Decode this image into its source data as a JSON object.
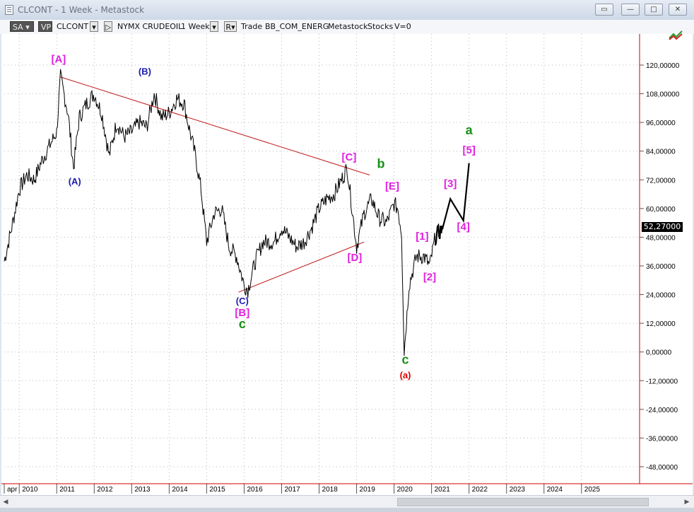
{
  "window": {
    "title": "CLCONT - 1 Week - Metastock",
    "buttons": [
      "restore-window",
      "minimize",
      "maximize",
      "close"
    ]
  },
  "toolbar": {
    "sa": "SA",
    "vp": "VP",
    "symbol": "CLCONT",
    "exchange": "NYMX CRUDEOIL",
    "period": "1 Week",
    "r_button": "R",
    "trade": "Trade",
    "source": "BB_COM_ENERG",
    "metastock": "Metastock",
    "stocks": "Stocks",
    "volume": "V=0"
  },
  "price_badge": "52,27000",
  "chart_data": {
    "type": "line",
    "title": "",
    "x": [
      "apr",
      "2010",
      "2011",
      "2012",
      "2013",
      "2014",
      "2015",
      "2016",
      "2017",
      "2018",
      "2019",
      "2020",
      "2021",
      "2022",
      "2023",
      "2024",
      "2025"
    ],
    "y_ticks": [
      "120,00000",
      "108,00000",
      "96,00000",
      "84,00000",
      "72,00000",
      "60,00000",
      "48,00000",
      "36,00000",
      "24,00000",
      "12,00000",
      "0,00000",
      "-12,00000",
      "-24,00000",
      "-36,00000",
      "-48,00000"
    ],
    "ylim": [
      -48,
      120
    ],
    "series": [
      {
        "values": [
          [
            2009.6,
            38
          ],
          [
            2009.8,
            52
          ],
          [
            2010.0,
            68
          ],
          [
            2010.2,
            74
          ],
          [
            2010.4,
            72
          ],
          [
            2010.6,
            80
          ],
          [
            2010.8,
            86
          ],
          [
            2011.0,
            92
          ],
          [
            2011.1,
            115
          ],
          [
            2011.3,
            100
          ],
          [
            2011.45,
            77
          ],
          [
            2011.6,
            98
          ],
          [
            2011.8,
            104
          ],
          [
            2012.0,
            108
          ],
          [
            2012.2,
            100
          ],
          [
            2012.4,
            82
          ],
          [
            2012.6,
            96
          ],
          [
            2012.8,
            90
          ],
          [
            2013.0,
            92
          ],
          [
            2013.2,
            96
          ],
          [
            2013.4,
            94
          ],
          [
            2013.6,
            108
          ],
          [
            2013.8,
            98
          ],
          [
            2014.0,
            100
          ],
          [
            2014.2,
            106
          ],
          [
            2014.4,
            104
          ],
          [
            2014.5,
            96
          ],
          [
            2014.7,
            82
          ],
          [
            2014.85,
            68
          ],
          [
            2015.0,
            46
          ],
          [
            2015.2,
            58
          ],
          [
            2015.4,
            60
          ],
          [
            2015.6,
            44
          ],
          [
            2015.8,
            40
          ],
          [
            2016.0,
            28
          ],
          [
            2016.1,
            26
          ],
          [
            2016.3,
            38
          ],
          [
            2016.5,
            46
          ],
          [
            2016.8,
            46
          ],
          [
            2017.0,
            52
          ],
          [
            2017.2,
            48
          ],
          [
            2017.4,
            44
          ],
          [
            2017.6,
            46
          ],
          [
            2017.8,
            52
          ],
          [
            2018.0,
            60
          ],
          [
            2018.2,
            64
          ],
          [
            2018.4,
            66
          ],
          [
            2018.6,
            72
          ],
          [
            2018.75,
            77
          ],
          [
            2018.85,
            64
          ],
          [
            2019.0,
            44
          ],
          [
            2019.2,
            58
          ],
          [
            2019.4,
            64
          ],
          [
            2019.6,
            56
          ],
          [
            2019.8,
            54
          ],
          [
            2020.0,
            62
          ],
          [
            2020.1,
            60
          ],
          [
            2020.2,
            50
          ],
          [
            2020.27,
            0
          ],
          [
            2020.4,
            28
          ],
          [
            2020.6,
            40
          ],
          [
            2020.8,
            40
          ],
          [
            2020.95,
            36
          ],
          [
            2021.1,
            48
          ],
          [
            2021.3,
            52
          ],
          [
            2021.5,
            64
          ],
          [
            2021.85,
            55
          ],
          [
            2022.0,
            79
          ]
        ]
      }
    ],
    "trendlines": [
      {
        "from": [
          2011.1,
          115
        ],
        "to": [
          2019.35,
          74
        ]
      },
      {
        "from": [
          2015.85,
          25
        ],
        "to": [
          2019.2,
          46
        ]
      }
    ],
    "wave_labels": [
      {
        "text": "[A]",
        "x": 2011.05,
        "y": 121,
        "color": "#e020e0"
      },
      {
        "text": "(B)",
        "x": 2013.35,
        "y": 116,
        "color": "#1a1ab0"
      },
      {
        "text": "(A)",
        "x": 2011.48,
        "y": 70,
        "color": "#1a1ab0"
      },
      {
        "text": "[C]",
        "x": 2018.8,
        "y": 80,
        "color": "#e020e0"
      },
      {
        "text": "b",
        "x": 2019.65,
        "y": 77,
        "color": "#178f17"
      },
      {
        "text": "[E]",
        "x": 2019.95,
        "y": 68,
        "color": "#e020e0"
      },
      {
        "text": "[D]",
        "x": 2018.95,
        "y": 38,
        "color": "#e020e0"
      },
      {
        "text": "(C)",
        "x": 2015.95,
        "y": 20,
        "color": "#1a1ab0"
      },
      {
        "text": "[B]",
        "x": 2015.95,
        "y": 15,
        "color": "#e020e0"
      },
      {
        "text": "c",
        "x": 2015.95,
        "y": 10,
        "color": "#178f17"
      },
      {
        "text": "c",
        "x": 2020.3,
        "y": -5,
        "color": "#178f17"
      },
      {
        "text": "(a)",
        "x": 2020.3,
        "y": -11,
        "color": "#e00000"
      },
      {
        "text": "[1]",
        "x": 2020.75,
        "y": 47,
        "color": "#e020e0"
      },
      {
        "text": "[2]",
        "x": 2020.95,
        "y": 30,
        "color": "#e020e0"
      },
      {
        "text": "[3]",
        "x": 2021.5,
        "y": 69,
        "color": "#e020e0"
      },
      {
        "text": "[4]",
        "x": 2021.85,
        "y": 51,
        "color": "#e020e0"
      },
      {
        "text": "[5]",
        "x": 2022.0,
        "y": 83,
        "color": "#e020e0"
      },
      {
        "text": "a",
        "x": 2022.0,
        "y": 91,
        "color": "#178f17"
      }
    ],
    "grid": true
  }
}
